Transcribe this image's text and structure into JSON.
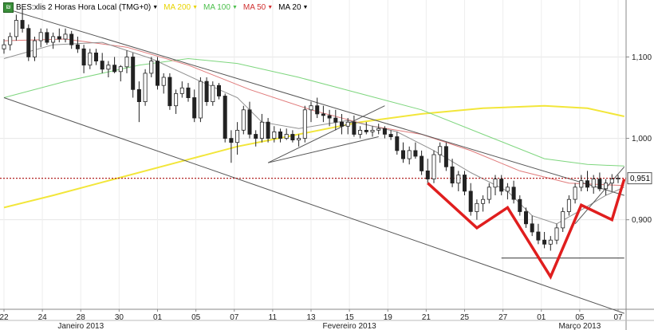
{
  "legend": {
    "symbol_label": "BES:xlis 2 Horas Hora Local (TMG+0)",
    "ma200_label": "MA 200",
    "ma100_label": "MA 100",
    "ma50_label": "MA 50",
    "ma20_label": "MA 20"
  },
  "colors": {
    "ma200": "#f2e63a",
    "ma100": "#7ed67e",
    "ma50": "#e07a7a",
    "ma20": "#909090",
    "candle": "#222222",
    "pattern": "#e01e1e",
    "channel": "#555555",
    "price_line": "#b22222"
  },
  "chart_data": {
    "type": "candlestick",
    "title": "",
    "ylim": [
      0.79,
      1.17
    ],
    "y_ticks": [
      0.9,
      1.0,
      1.1
    ],
    "y_tick_labels": [
      "0,900",
      "1,000",
      "1,100"
    ],
    "last_price": 0.951,
    "last_price_label": "0,951",
    "x_ticks": [
      "22",
      "24",
      "28",
      "30",
      "01",
      "05",
      "07",
      "11",
      "13",
      "15",
      "19",
      "21",
      "25",
      "27",
      "01",
      "05",
      "07"
    ],
    "month_labels": [
      "Janeiro 2013",
      "Fevereiro 2013",
      "Março 2013"
    ],
    "candles": [
      [
        1.11,
        1.122,
        1.104,
        1.115
      ],
      [
        1.115,
        1.13,
        1.108,
        1.125
      ],
      [
        1.125,
        1.152,
        1.12,
        1.145
      ],
      [
        1.145,
        1.16,
        1.13,
        1.135
      ],
      [
        1.135,
        1.14,
        1.095,
        1.1
      ],
      [
        1.1,
        1.125,
        1.095,
        1.12
      ],
      [
        1.12,
        1.135,
        1.112,
        1.13
      ],
      [
        1.13,
        1.135,
        1.115,
        1.118
      ],
      [
        1.118,
        1.13,
        1.11,
        1.125
      ],
      [
        1.125,
        1.135,
        1.118,
        1.122
      ],
      [
        1.122,
        1.135,
        1.118,
        1.128
      ],
      [
        1.128,
        1.132,
        1.11,
        1.115
      ],
      [
        1.115,
        1.125,
        1.105,
        1.11
      ],
      [
        1.11,
        1.115,
        1.08,
        1.09
      ],
      [
        1.09,
        1.11,
        1.085,
        1.105
      ],
      [
        1.105,
        1.11,
        1.09,
        1.095
      ],
      [
        1.095,
        1.105,
        1.08,
        1.085
      ],
      [
        1.085,
        1.095,
        1.075,
        1.09
      ],
      [
        1.09,
        1.1,
        1.08,
        1.082
      ],
      [
        1.082,
        1.09,
        1.07,
        1.088
      ],
      [
        1.088,
        1.108,
        1.08,
        1.1
      ],
      [
        1.1,
        1.105,
        1.05,
        1.06
      ],
      [
        1.06,
        1.07,
        1.02,
        1.045
      ],
      [
        1.045,
        1.085,
        1.04,
        1.08
      ],
      [
        1.08,
        1.1,
        1.075,
        1.095
      ],
      [
        1.095,
        1.1,
        1.06,
        1.065
      ],
      [
        1.065,
        1.08,
        1.055,
        1.075
      ],
      [
        1.075,
        1.08,
        1.035,
        1.04
      ],
      [
        1.04,
        1.06,
        1.03,
        1.055
      ],
      [
        1.055,
        1.07,
        1.05,
        1.062
      ],
      [
        1.062,
        1.068,
        1.045,
        1.05
      ],
      [
        1.05,
        1.06,
        1.02,
        1.025
      ],
      [
        1.025,
        1.075,
        1.02,
        1.07
      ],
      [
        1.07,
        1.075,
        1.04,
        1.045
      ],
      [
        1.045,
        1.07,
        1.04,
        1.065
      ],
      [
        1.065,
        1.068,
        1.048,
        1.052
      ],
      [
        1.052,
        1.055,
        0.995,
        1.0
      ],
      [
        1.0,
        1.01,
        0.97,
        0.995
      ],
      [
        0.995,
        1.02,
        0.98,
        1.01
      ],
      [
        1.01,
        1.04,
        1.005,
        1.035
      ],
      [
        1.035,
        1.045,
        1.0,
        1.005
      ],
      [
        1.005,
        1.01,
        0.99,
        1.0
      ],
      [
        1.0,
        1.03,
        0.995,
        1.02
      ],
      [
        1.02,
        1.025,
        0.995,
        1.0
      ],
      [
        1.0,
        1.015,
        0.995,
        1.008
      ],
      [
        1.008,
        1.012,
        0.995,
        1.0
      ],
      [
        1.0,
        1.012,
        0.998,
        1.005
      ],
      [
        1.005,
        1.01,
        0.995,
        0.998
      ],
      [
        0.998,
        1.005,
        0.99,
        1.0
      ],
      [
        1.0,
        1.04,
        0.995,
        1.035
      ],
      [
        1.035,
        1.045,
        1.02,
        1.04
      ],
      [
        1.04,
        1.05,
        1.025,
        1.03
      ],
      [
        1.03,
        1.04,
        1.02,
        1.028
      ],
      [
        1.028,
        1.035,
        1.015,
        1.025
      ],
      [
        1.025,
        1.035,
        1.01,
        1.02
      ],
      [
        1.02,
        1.03,
        1.005,
        1.015
      ],
      [
        1.015,
        1.025,
        1.005,
        1.02
      ],
      [
        1.02,
        1.028,
        1.002,
        1.005
      ],
      [
        1.005,
        1.015,
        1.0,
        1.01
      ],
      [
        1.01,
        1.02,
        1.005,
        1.008
      ],
      [
        1.008,
        1.015,
        1.002,
        1.01
      ],
      [
        1.01,
        1.018,
        1.005,
        1.012
      ],
      [
        1.012,
        1.015,
        1.0,
        1.005
      ],
      [
        1.005,
        1.01,
        0.998,
        1.002
      ],
      [
        1.002,
        1.008,
        0.98,
        0.985
      ],
      [
        0.985,
        0.995,
        0.97,
        0.975
      ],
      [
        0.975,
        0.99,
        0.968,
        0.985
      ],
      [
        0.985,
        0.995,
        0.975,
        0.978
      ],
      [
        0.978,
        0.985,
        0.955,
        0.96
      ],
      [
        0.96,
        0.975,
        0.945,
        0.95
      ],
      [
        0.95,
        0.985,
        0.945,
        0.98
      ],
      [
        0.98,
        0.995,
        0.97,
        0.99
      ],
      [
        0.99,
        0.995,
        0.96,
        0.965
      ],
      [
        0.965,
        0.975,
        0.94,
        0.945
      ],
      [
        0.945,
        0.96,
        0.935,
        0.955
      ],
      [
        0.955,
        0.96,
        0.93,
        0.935
      ],
      [
        0.935,
        0.945,
        0.905,
        0.91
      ],
      [
        0.91,
        0.925,
        0.9,
        0.92
      ],
      [
        0.92,
        0.93,
        0.91,
        0.925
      ],
      [
        0.925,
        0.945,
        0.92,
        0.94
      ],
      [
        0.94,
        0.955,
        0.93,
        0.95
      ],
      [
        0.95,
        0.955,
        0.93,
        0.935
      ],
      [
        0.935,
        0.945,
        0.925,
        0.94
      ],
      [
        0.94,
        0.948,
        0.92,
        0.925
      ],
      [
        0.925,
        0.93,
        0.905,
        0.91
      ],
      [
        0.91,
        0.915,
        0.89,
        0.895
      ],
      [
        0.895,
        0.905,
        0.88,
        0.885
      ],
      [
        0.885,
        0.895,
        0.87,
        0.875
      ],
      [
        0.875,
        0.885,
        0.865,
        0.87
      ],
      [
        0.87,
        0.88,
        0.862,
        0.875
      ],
      [
        0.875,
        0.895,
        0.87,
        0.89
      ],
      [
        0.89,
        0.915,
        0.885,
        0.91
      ],
      [
        0.91,
        0.93,
        0.905,
        0.925
      ],
      [
        0.925,
        0.945,
        0.92,
        0.94
      ],
      [
        0.94,
        0.955,
        0.935,
        0.948
      ],
      [
        0.948,
        0.96,
        0.935,
        0.94
      ],
      [
        0.94,
        0.955,
        0.932,
        0.95
      ],
      [
        0.95,
        0.958,
        0.935,
        0.938
      ],
      [
        0.938,
        0.95,
        0.93,
        0.945
      ],
      [
        0.945,
        0.956,
        0.935,
        0.95
      ],
      [
        0.95,
        0.955,
        0.945,
        0.951
      ]
    ],
    "ma200": [
      [
        0,
        0.915
      ],
      [
        8,
        0.93
      ],
      [
        18,
        0.95
      ],
      [
        28,
        0.97
      ],
      [
        38,
        0.99
      ],
      [
        48,
        1.005
      ],
      [
        58,
        1.02
      ],
      [
        68,
        1.03
      ],
      [
        78,
        1.037
      ],
      [
        88,
        1.04
      ],
      [
        95,
        1.037
      ],
      [
        101,
        1.027
      ]
    ],
    "ma100": [
      [
        0,
        1.05
      ],
      [
        10,
        1.07
      ],
      [
        22,
        1.09
      ],
      [
        30,
        1.098
      ],
      [
        38,
        1.092
      ],
      [
        48,
        1.075
      ],
      [
        58,
        1.055
      ],
      [
        68,
        1.035
      ],
      [
        78,
        1.005
      ],
      [
        88,
        0.975
      ],
      [
        95,
        0.968
      ],
      [
        101,
        0.966
      ]
    ],
    "ma50": [
      [
        0,
        1.12
      ],
      [
        10,
        1.122
      ],
      [
        20,
        1.112
      ],
      [
        30,
        1.09
      ],
      [
        40,
        1.06
      ],
      [
        50,
        1.035
      ],
      [
        60,
        1.015
      ],
      [
        68,
        1.005
      ],
      [
        76,
        0.985
      ],
      [
        84,
        0.96
      ],
      [
        92,
        0.945
      ],
      [
        101,
        0.942
      ]
    ],
    "ma20": [
      [
        0,
        1.098
      ],
      [
        8,
        1.115
      ],
      [
        16,
        1.118
      ],
      [
        24,
        1.098
      ],
      [
        32,
        1.07
      ],
      [
        38,
        1.05
      ],
      [
        42,
        1.02
      ],
      [
        48,
        1.012
      ],
      [
        56,
        1.022
      ],
      [
        64,
        1.008
      ],
      [
        70,
        0.985
      ],
      [
        76,
        0.958
      ],
      [
        82,
        0.935
      ],
      [
        86,
        0.905
      ],
      [
        90,
        0.895
      ],
      [
        94,
        0.912
      ],
      [
        98,
        0.93
      ],
      [
        101,
        0.94
      ]
    ],
    "channel_lines": [
      [
        [
          0,
          1.16
        ],
        [
          101,
          0.93
        ]
      ],
      [
        [
          0,
          1.05
        ],
        [
          101,
          0.785
        ]
      ]
    ],
    "triangle_lines": [
      [
        [
          43,
          0.97
        ],
        [
          61,
          1.002
        ]
      ],
      [
        [
          43,
          0.97
        ],
        [
          62,
          1.04
        ]
      ]
    ],
    "support_line": [
      [
        81,
        0.853
      ],
      [
        101,
        0.853
      ]
    ],
    "pattern_line": [
      [
        69,
        0.945
      ],
      [
        77,
        0.89
      ],
      [
        82,
        0.915
      ],
      [
        89,
        0.83
      ],
      [
        94,
        0.918
      ],
      [
        99,
        0.9
      ],
      [
        101,
        0.95
      ]
    ],
    "right_line": [
      [
        93,
        0.895
      ],
      [
        101,
        0.965
      ]
    ]
  }
}
